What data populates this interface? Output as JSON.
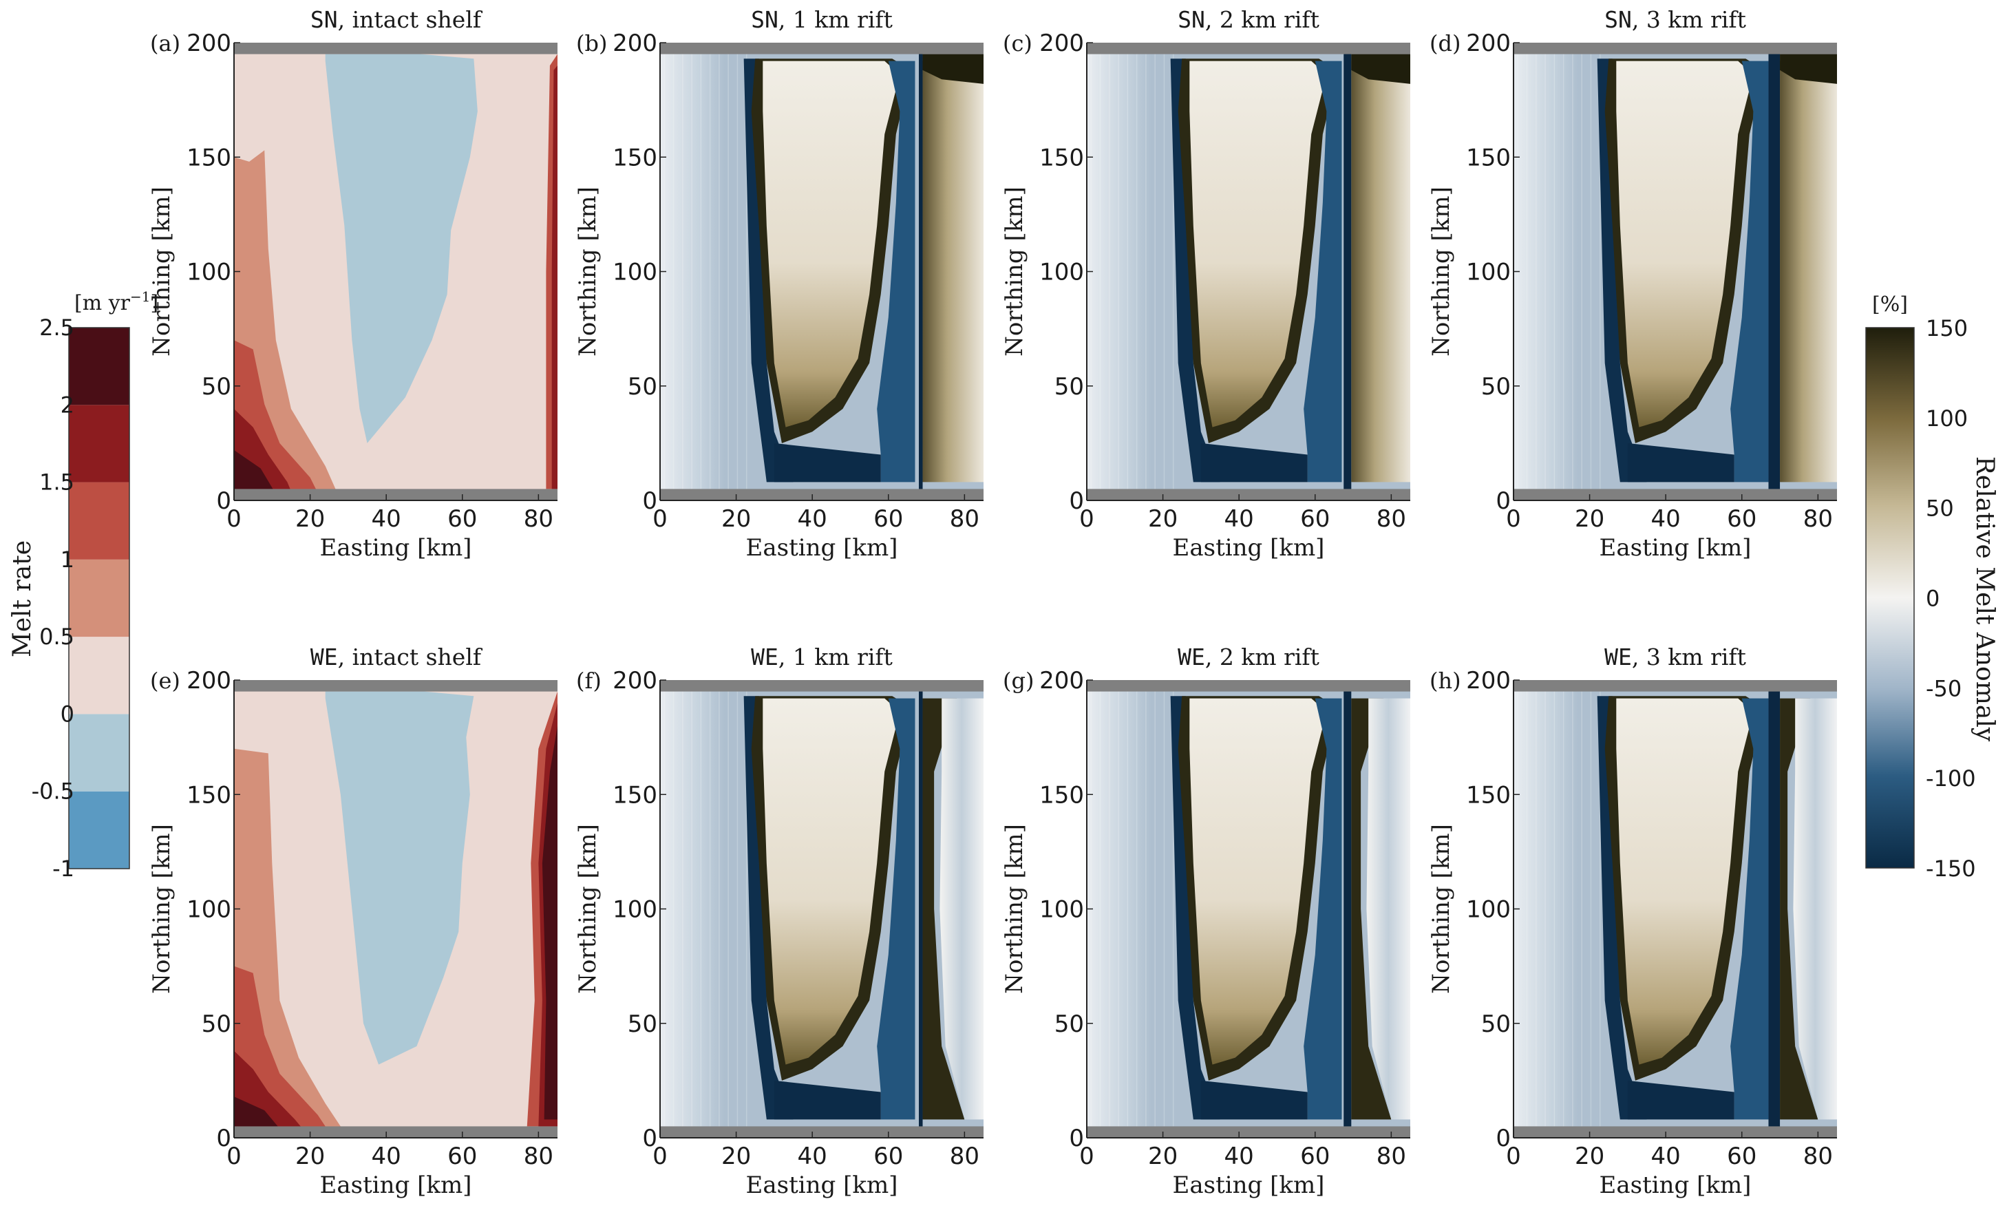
{
  "chart_data": {
    "type": "heatmap",
    "layout": "2 rows x 4 columns of panels",
    "panels": [
      {
        "id": "a",
        "label": "(a)",
        "title_prefix": "SN",
        "title": ", intact shelf",
        "kind": "melt",
        "rift_km": 0,
        "orientation": "SN"
      },
      {
        "id": "b",
        "label": "(b)",
        "title_prefix": "SN",
        "title": ", 1 km rift",
        "kind": "anomaly",
        "rift_km": 1,
        "orientation": "SN"
      },
      {
        "id": "c",
        "label": "(c)",
        "title_prefix": "SN",
        "title": ", 2 km rift",
        "kind": "anomaly",
        "rift_km": 2,
        "orientation": "SN"
      },
      {
        "id": "d",
        "label": "(d)",
        "title_prefix": "SN",
        "title": ", 3 km rift",
        "kind": "anomaly",
        "rift_km": 3,
        "orientation": "SN"
      },
      {
        "id": "e",
        "label": "(e)",
        "title_prefix": "WE",
        "title": ", intact shelf",
        "kind": "melt",
        "rift_km": 0,
        "orientation": "WE"
      },
      {
        "id": "f",
        "label": "(f)",
        "title_prefix": "WE",
        "title": ", 1 km rift",
        "kind": "anomaly",
        "rift_km": 1,
        "orientation": "WE"
      },
      {
        "id": "g",
        "label": "(g)",
        "title_prefix": "WE",
        "title": ", 2 km rift",
        "kind": "anomaly",
        "rift_km": 2,
        "orientation": "WE"
      },
      {
        "id": "h",
        "label": "(h)",
        "title_prefix": "WE",
        "title": ", 3 km rift",
        "kind": "anomaly",
        "rift_km": 3,
        "orientation": "WE"
      }
    ],
    "x_axis": {
      "label": "Easting [km]",
      "range": [
        0,
        85
      ],
      "ticks": [
        0,
        20,
        40,
        60,
        80
      ],
      "tick_labels": [
        "0",
        "20",
        "40",
        "60",
        "80"
      ]
    },
    "y_axis": {
      "label": "Northing [km]",
      "range": [
        0,
        200
      ],
      "ticks": [
        0,
        50,
        100,
        150,
        200
      ],
      "tick_labels": [
        "0",
        "50",
        "100",
        "150",
        "200"
      ]
    },
    "walls_km": {
      "south": [
        0,
        5
      ],
      "north": [
        195,
        200
      ]
    },
    "rift_center_km": 68.5,
    "melt_colorbar": {
      "title": "Melt rate",
      "unit_label": "[m yr",
      "unit_exponent": "−1",
      "unit_close": "]",
      "levels": [
        -1,
        -0.5,
        0,
        0.5,
        1,
        1.5,
        2,
        2.5
      ],
      "tick_labels": [
        "-1",
        "-0.5",
        "0",
        "0.5",
        "1",
        "1.5",
        "2",
        "2.5"
      ],
      "colors": [
        "#5b9ac2",
        "#adc9d6",
        "#ebd9d3",
        "#d4907a",
        "#bd4f43",
        "#8c1c1f",
        "#4a0e16"
      ]
    },
    "anomaly_colorbar": {
      "title": "Relative Melt Anomaly",
      "unit_label": "[%]",
      "range": [
        -150,
        150
      ],
      "ticks": [
        -150,
        -100,
        -50,
        0,
        50,
        100,
        150
      ],
      "tick_labels": [
        "-150",
        "-100",
        "-50",
        "0",
        "50",
        "100",
        "150"
      ],
      "colors": [
        "#0a2a45",
        "#2c5c82",
        "#9fb4c8",
        "#f4f3f1",
        "#c5b895",
        "#7d6b3e",
        "#1f1e0c"
      ]
    },
    "grid": false,
    "wall_color": "#808080"
  }
}
